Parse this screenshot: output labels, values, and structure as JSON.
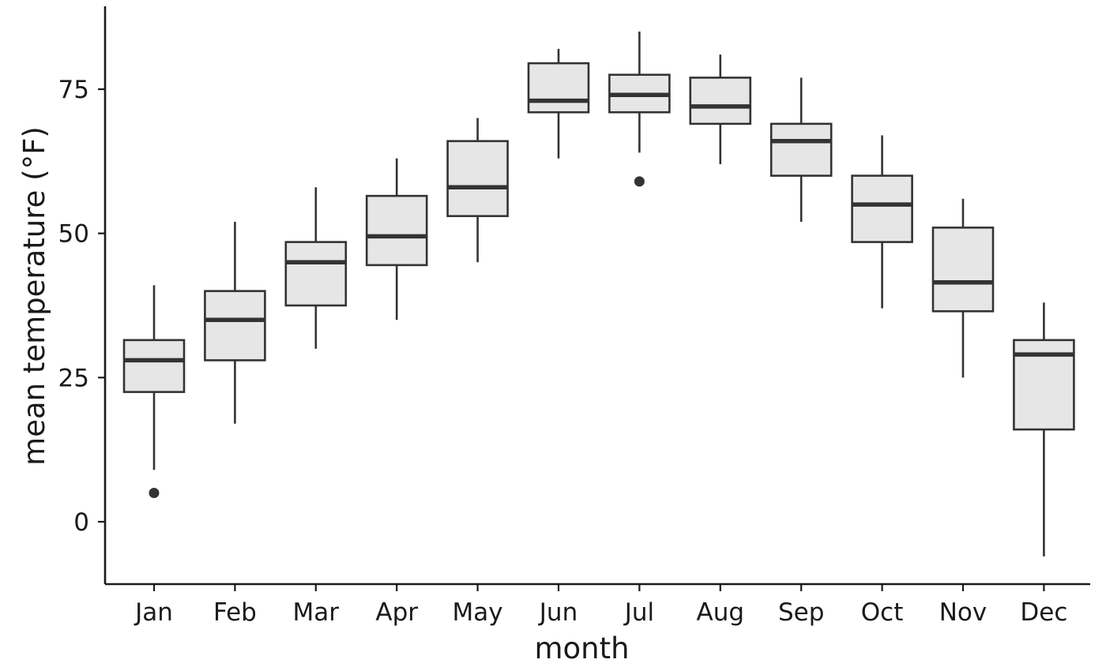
{
  "chart_data": {
    "type": "boxplot",
    "xlabel": "month",
    "ylabel": "mean temperature (°F)",
    "ylim": [
      -10,
      90
    ],
    "yticks": [
      0,
      25,
      50,
      75
    ],
    "grid": false,
    "legend": "none",
    "colors": {
      "box_fill": "#e6e6e6",
      "stroke": "#333333",
      "axis": "#1a1a1a"
    },
    "categories": [
      "Jan",
      "Feb",
      "Mar",
      "Apr",
      "May",
      "Jun",
      "Jul",
      "Aug",
      "Sep",
      "Oct",
      "Nov",
      "Dec"
    ],
    "boxes": [
      {
        "label": "Jan",
        "whisker_low": 9,
        "q1": 22.5,
        "median": 28,
        "q3": 31.5,
        "whisker_high": 41,
        "outliers": [
          5
        ]
      },
      {
        "label": "Feb",
        "whisker_low": 17,
        "q1": 28,
        "median": 35,
        "q3": 40,
        "whisker_high": 52,
        "outliers": []
      },
      {
        "label": "Mar",
        "whisker_low": 30,
        "q1": 37.5,
        "median": 45,
        "q3": 48.5,
        "whisker_high": 58,
        "outliers": []
      },
      {
        "label": "Apr",
        "whisker_low": 35,
        "q1": 44.5,
        "median": 49.5,
        "q3": 56.5,
        "whisker_high": 63,
        "outliers": []
      },
      {
        "label": "May",
        "whisker_low": 45,
        "q1": 53,
        "median": 58,
        "q3": 66,
        "whisker_high": 70,
        "outliers": []
      },
      {
        "label": "Jun",
        "whisker_low": 63,
        "q1": 71,
        "median": 73,
        "q3": 79.5,
        "whisker_high": 82,
        "outliers": []
      },
      {
        "label": "Jul",
        "whisker_low": 64,
        "q1": 71,
        "median": 74,
        "q3": 77.5,
        "whisker_high": 85,
        "outliers": [
          59
        ]
      },
      {
        "label": "Aug",
        "whisker_low": 62,
        "q1": 69,
        "median": 72,
        "q3": 77,
        "whisker_high": 81,
        "outliers": []
      },
      {
        "label": "Sep",
        "whisker_low": 52,
        "q1": 60,
        "median": 66,
        "q3": 69,
        "whisker_high": 77,
        "outliers": []
      },
      {
        "label": "Oct",
        "whisker_low": 37,
        "q1": 48.5,
        "median": 55,
        "q3": 60,
        "whisker_high": 67,
        "outliers": []
      },
      {
        "label": "Nov",
        "whisker_low": 25,
        "q1": 36.5,
        "median": 41.5,
        "q3": 51,
        "whisker_high": 56,
        "outliers": []
      },
      {
        "label": "Dec",
        "whisker_low": -6,
        "q1": 16,
        "median": 29,
        "q3": 31.5,
        "whisker_high": 38,
        "outliers": []
      }
    ]
  }
}
